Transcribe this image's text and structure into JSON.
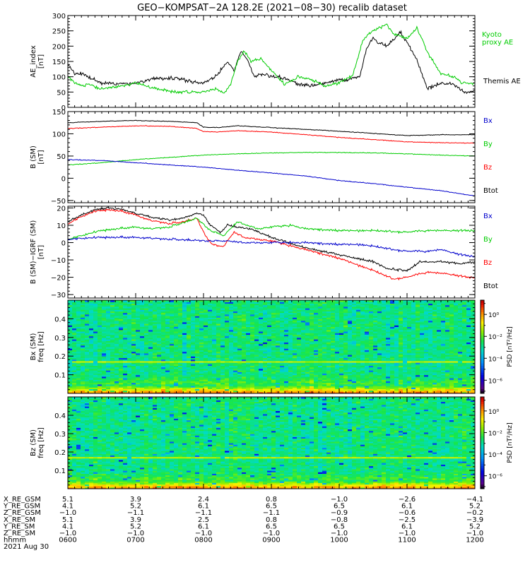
{
  "chart_data": {
    "title": "GEO−KOMPSAT−2A 128.2E (2021−08−30) recalib dataset",
    "x_range_hours": [
      6,
      12
    ],
    "panels": [
      {
        "type": "line",
        "ylabel_lines": [
          "AE_index",
          "[nT]"
        ],
        "ylim": [
          0,
          300
        ],
        "yticks": [
          0,
          50,
          100,
          150,
          200,
          250,
          300
        ],
        "ytick_labels": [
          "0",
          "50",
          "100",
          "150",
          "200",
          "250",
          "300"
        ],
        "series": [
          {
            "name": "Themis AE",
            "label_lines": [
              "Themis AE"
            ],
            "color": "#000000",
            "x": [
              6.0,
              6.1,
              6.2,
              6.3,
              6.5,
              6.8,
              7.0,
              7.3,
              7.6,
              7.9,
              8.0,
              8.2,
              8.35,
              8.45,
              8.55,
              8.65,
              8.75,
              8.85,
              9.0,
              9.2,
              9.4,
              9.6,
              9.8,
              10.0,
              10.1,
              10.3,
              10.4,
              10.5,
              10.55,
              10.7,
              10.9,
              11.0,
              11.15,
              11.3,
              11.5,
              11.7,
              11.8,
              11.9,
              12.0
            ],
            "y": [
              140,
              110,
              110,
              100,
              80,
              75,
              80,
              95,
              95,
              80,
              80,
              105,
              150,
              120,
              185,
              155,
              100,
              110,
              100,
              95,
              75,
              70,
              80,
              90,
              90,
              100,
              190,
              230,
              215,
              200,
              245,
              215,
              150,
              60,
              80,
              75,
              55,
              45,
              60
            ]
          },
          {
            "name": "Kyoto proxy AE",
            "label_lines": [
              "Kyoto",
              "proxy AE"
            ],
            "color": "#00cc00",
            "x": [
              6.0,
              6.1,
              6.2,
              6.3,
              6.5,
              6.8,
              7.0,
              7.3,
              7.6,
              7.9,
              8.0,
              8.2,
              8.3,
              8.4,
              8.5,
              8.6,
              8.7,
              8.85,
              9.0,
              9.2,
              9.4,
              9.6,
              9.8,
              10.0,
              10.2,
              10.35,
              10.5,
              10.7,
              10.8,
              11.0,
              11.15,
              11.3,
              11.5,
              11.7,
              11.8,
              11.9,
              12.0
            ],
            "y": [
              100,
              80,
              70,
              75,
              60,
              70,
              80,
              60,
              50,
              50,
              50,
              60,
              45,
              75,
              150,
              185,
              150,
              160,
              120,
              75,
              100,
              90,
              70,
              80,
              105,
              220,
              250,
              270,
              240,
              225,
              260,
              180,
              110,
              100,
              80,
              80,
              75
            ]
          }
        ]
      },
      {
        "type": "line",
        "ylabel_lines": [
          "B (SM)",
          "[nT]"
        ],
        "ylim": [
          -55,
          150
        ],
        "yticks": [
          -50,
          0,
          50,
          100,
          150
        ],
        "ytick_labels": [
          "−50",
          "0",
          "50",
          "100",
          "150"
        ],
        "series": [
          {
            "name": "Btot",
            "color": "#000000",
            "x": [
              6,
              6.5,
              7,
              7.5,
              7.9,
              8.0,
              8.2,
              8.5,
              9,
              9.5,
              10,
              10.5,
              11,
              11.5,
              12
            ],
            "y": [
              125,
              128,
              130,
              128,
              125,
              115,
              114,
              118,
              114,
              110,
              106,
              101,
              96,
              98,
              98
            ]
          },
          {
            "name": "Bz",
            "color": "#ff0000",
            "x": [
              6,
              6.5,
              7,
              7.5,
              7.9,
              8.0,
              8.2,
              8.5,
              9,
              9.5,
              10,
              10.5,
              11,
              11.5,
              12
            ],
            "y": [
              112,
              115,
              118,
              117,
              112,
              105,
              104,
              107,
              104,
              98,
              92,
              87,
              82,
              80,
              79
            ]
          },
          {
            "name": "By",
            "color": "#00cc00",
            "x": [
              6,
              6.5,
              7,
              7.5,
              8,
              8.5,
              9,
              9.5,
              10,
              10.5,
              11,
              11.5,
              12
            ],
            "y": [
              30,
              35,
              42,
              47,
              52,
              55,
              57,
              58,
              58,
              57,
              55,
              52,
              50
            ]
          },
          {
            "name": "Bx",
            "color": "#0000cc",
            "x": [
              6,
              6.5,
              7,
              7.5,
              8,
              8.5,
              9,
              9.5,
              10,
              10.5,
              11,
              11.5,
              12
            ],
            "y": [
              42,
              40,
              35,
              30,
              25,
              18,
              12,
              5,
              -5,
              -12,
              -20,
              -28,
              -40
            ]
          }
        ],
        "legend": [
          "Bx",
          "By",
          "Bz",
          "Btot"
        ]
      },
      {
        "type": "line",
        "ylabel_lines": [
          "B (SM)−IGRF (SM)",
          "[nT]"
        ],
        "ylim": [
          -32,
          21
        ],
        "yticks": [
          -30,
          -20,
          -10,
          0,
          10,
          20
        ],
        "ytick_labels": [
          "−30",
          "−20",
          "−10",
          "0",
          "10",
          "20"
        ],
        "series": [
          {
            "name": "Btot",
            "color": "#000000",
            "x": [
              6,
              6.2,
              6.4,
              6.6,
              6.8,
              7,
              7.2,
              7.5,
              7.7,
              7.9,
              8.0,
              8.1,
              8.25,
              8.35,
              8.5,
              8.7,
              9,
              9.5,
              10,
              10.5,
              10.7,
              11,
              11.2,
              11.5,
              11.8,
              12
            ],
            "y": [
              12,
              16,
              19,
              20,
              19,
              17,
              15,
              13,
              14,
              17,
              16,
              10,
              6,
              10,
              9,
              8,
              3,
              -3,
              -7,
              -11,
              -15,
              -16,
              -11,
              -11,
              -12,
              -11
            ]
          },
          {
            "name": "Bz",
            "color": "#ff0000",
            "x": [
              6,
              6.2,
              6.4,
              6.6,
              6.8,
              7,
              7.2,
              7.5,
              7.7,
              7.9,
              8.0,
              8.1,
              8.2,
              8.3,
              8.45,
              8.6,
              9,
              9.5,
              10,
              10.5,
              10.8,
              11,
              11.3,
              11.6,
              11.9,
              12
            ],
            "y": [
              11,
              15,
              18,
              19,
              18,
              16,
              13,
              11,
              12,
              14,
              6,
              0,
              -2,
              -2,
              6,
              3,
              1,
              -4,
              -9,
              -16,
              -21,
              -20,
              -17,
              -18,
              -20,
              -20
            ]
          },
          {
            "name": "By",
            "color": "#00cc00",
            "x": [
              6,
              6.2,
              6.5,
              7,
              7.2,
              7.5,
              7.9,
              8.1,
              8.3,
              8.5,
              8.8,
              9,
              9.3,
              9.5,
              10,
              10.5,
              11,
              11.3,
              11.6,
              12
            ],
            "y": [
              2,
              4,
              7,
              9,
              8,
              9,
              14,
              7,
              4,
              12,
              8,
              9,
              10,
              8,
              7,
              7,
              6,
              7,
              7,
              7
            ]
          },
          {
            "name": "Bx",
            "color": "#0000cc",
            "x": [
              6,
              6.5,
              7,
              7.5,
              8,
              8.3,
              8.6,
              9,
              9.5,
              10,
              10.3,
              10.5,
              10.8,
              11,
              11.3,
              11.5,
              11.8,
              12
            ],
            "y": [
              2,
              3,
              3,
              2,
              1,
              1,
              0,
              0,
              0,
              -1,
              -1,
              -2,
              -4,
              -5,
              -5,
              -4,
              -7,
              -8
            ]
          }
        ],
        "legend": [
          "Bx",
          "By",
          "Bz",
          "Btot"
        ]
      },
      {
        "type": "heatmap",
        "ylabel_lines": [
          "Bx (SM)",
          "freq [Hz]"
        ],
        "ylim": [
          0,
          0.5
        ],
        "yticks": [
          0.1,
          0.2,
          0.3,
          0.4
        ],
        "ytick_labels": [
          "0.1",
          "0.2",
          "0.3",
          "0.4"
        ],
        "colorbar": {
          "label": "PSD [nT²/Hz]",
          "ticks": [
            "10⁰",
            "10⁻²",
            "10⁻⁴",
            "10⁻⁶"
          ],
          "log_range": [
            -7.2,
            1.3
          ]
        },
        "line_freq": 0.17,
        "seed": 11
      },
      {
        "type": "heatmap",
        "ylabel_lines": [
          "Bz (SM)",
          "freq [Hz]"
        ],
        "ylim": [
          0,
          0.5
        ],
        "yticks": [
          0.1,
          0.2,
          0.3,
          0.4
        ],
        "ytick_labels": [
          "0.1",
          "0.2",
          "0.3",
          "0.4"
        ],
        "colorbar": {
          "label": "PSD [nT²/Hz]",
          "ticks": [
            "10⁰",
            "10⁻²",
            "10⁻⁴",
            "10⁻⁶"
          ],
          "log_range": [
            -7.2,
            1.3
          ]
        },
        "line_freq": 0.17,
        "seed": 29
      }
    ],
    "ephemeris": {
      "labels": [
        "X_RE_GSM",
        "Y_RE_GSM",
        "Z_RE_GSM",
        "X_RE_SM",
        "Y_RE_SM",
        "Z_RE_SM",
        "hhmm",
        "2021 Aug 30"
      ],
      "hours": [
        6,
        7,
        8,
        9,
        10,
        11,
        12
      ],
      "rows": [
        [
          "5.1",
          "3.9",
          "2.4",
          "0.8",
          "−1.0",
          "−2.6",
          "−4.1"
        ],
        [
          "4.1",
          "5.2",
          "6.1",
          "6.5",
          "6.5",
          "6.1",
          "5.2"
        ],
        [
          "−1.0",
          "−1.1",
          "−1.1",
          "−1.1",
          "−0.9",
          "−0.6",
          "−0.2"
        ],
        [
          "5.1",
          "3.9",
          "2.5",
          "0.8",
          "−0.8",
          "−2.5",
          "−3.9"
        ],
        [
          "4.1",
          "5.2",
          "6.1",
          "6.5",
          "6.5",
          "6.1",
          "5.2"
        ],
        [
          "−1.0",
          "−1.0",
          "−1.0",
          "−1.0",
          "−1.0",
          "−1.0",
          "−1.0"
        ],
        [
          "0600",
          "0700",
          "0800",
          "0900",
          "1000",
          "1100",
          "1200"
        ]
      ]
    }
  }
}
